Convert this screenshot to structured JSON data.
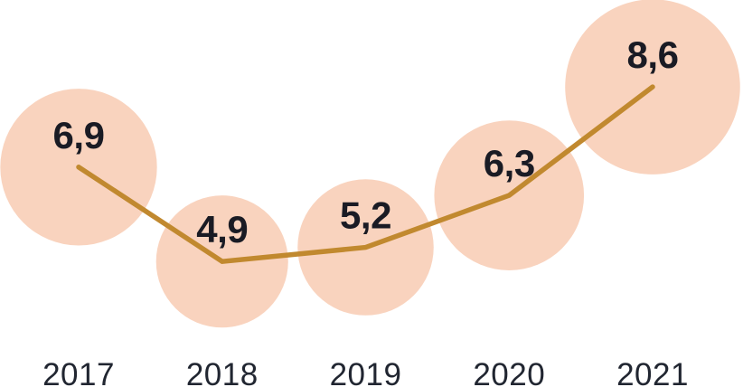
{
  "chart_data": {
    "type": "line",
    "variant": "bubble-line",
    "title": "",
    "xlabel": "",
    "ylabel": "",
    "categories": [
      "2017",
      "2018",
      "2019",
      "2020",
      "2021"
    ],
    "series": [
      {
        "name": "value",
        "values": [
          6.9,
          4.9,
          5.2,
          6.3,
          8.6
        ],
        "labels": [
          "6,9",
          "4,9",
          "5,2",
          "6,3",
          "8,6"
        ]
      }
    ],
    "y_range_shown": [
      4.9,
      8.6
    ],
    "decimal_separator": ",",
    "grid": false,
    "legend": false,
    "axes_visible": false,
    "bubble_area_proportional_to_value": true,
    "value_labels_inside_bubbles": true,
    "x_axis_position": "bottom",
    "colors": {
      "background": "#ffffff",
      "bubble_fill": "#f9d3be",
      "line": "#c1892f",
      "value_label": "#1a1b24",
      "axis_label": "#212631"
    }
  }
}
